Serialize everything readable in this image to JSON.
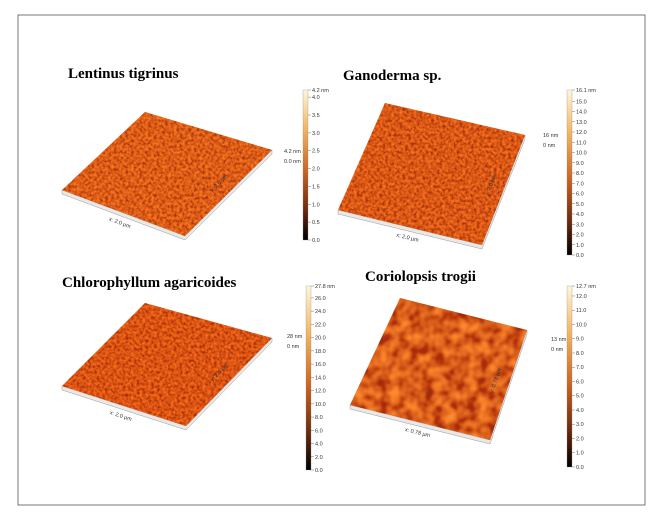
{
  "panels": [
    {
      "title": "Lentinus tigrinus",
      "surface_max": "4.2 nm",
      "surface_min": "0.0 nm",
      "x_axis": "x: 2.0 µm",
      "y_axis": "y: 2.0 µm",
      "colorbar_ticks": [
        "4.2 nm",
        "4.0",
        "3.5",
        "3.0",
        "2.5",
        "2.0",
        "1.5",
        "1.0",
        "0.5",
        "0.0"
      ]
    },
    {
      "title": "Ganoderma sp.",
      "surface_max": "16 nm",
      "surface_min": "0 nm",
      "x_axis": "x: 2.0 µm",
      "y_axis": "y: 2.0 µm",
      "colorbar_ticks": [
        "16.1 nm",
        "15.0",
        "14.0",
        "13.0",
        "12.0",
        "11.0",
        "10.0",
        "9.0",
        "8.0",
        "7.0",
        "6.0",
        "5.0",
        "4.0",
        "3.0",
        "2.0",
        "1.0",
        "0.0"
      ]
    },
    {
      "title": "Chlorophyllum agaricoides",
      "surface_max": "28 nm",
      "surface_min": "0 nm",
      "x_axis": "x: 2.0 µm",
      "y_axis": "y: 2.0 µm",
      "colorbar_ticks": [
        "27.8 nm",
        "26.0",
        "24.0",
        "22.0",
        "20.0",
        "18.0",
        "16.0",
        "14.0",
        "12.0",
        "10.0",
        "8.0",
        "6.0",
        "4.0",
        "2.0",
        "0.0"
      ]
    },
    {
      "title": "Coriolopsis trogii",
      "surface_max": "13 nm",
      "surface_min": "0 nm",
      "x_axis": "x: 0.78 µm",
      "y_axis": "y: 0.78 µm",
      "colorbar_ticks": [
        "12.7 nm",
        "12.0",
        "11.0",
        "10.0",
        "9.0",
        "8.0",
        "7.0",
        "6.0",
        "5.0",
        "4.0",
        "3.0",
        "2.0",
        "1.0",
        "0.0"
      ]
    }
  ]
}
